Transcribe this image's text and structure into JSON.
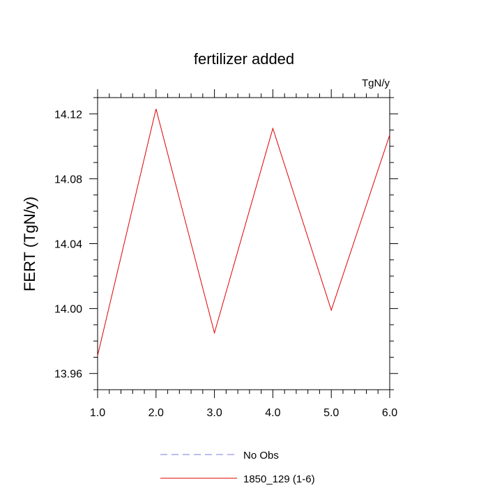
{
  "chart_data": {
    "type": "line",
    "title": "fertilizer added",
    "units_label": "TgN/y",
    "ylabel": "FERT  (TgN/y)",
    "xlabel": "",
    "xlim": [
      1.0,
      6.0
    ],
    "ylim": [
      13.95,
      14.13
    ],
    "x_ticks": [
      1.0,
      2.0,
      3.0,
      4.0,
      5.0,
      6.0
    ],
    "x_tick_labels": [
      "1.0",
      "2.0",
      "3.0",
      "4.0",
      "5.0",
      "6.0"
    ],
    "y_ticks": [
      13.96,
      14.0,
      14.04,
      14.08,
      14.12
    ],
    "y_tick_labels": [
      "13.96",
      "14.00",
      "14.04",
      "14.08",
      "14.12"
    ],
    "grid": false,
    "legend_position": "bottom-center",
    "series": [
      {
        "name": "No Obs",
        "color": "#7b7bd9",
        "dash": "dashed",
        "x": [],
        "y": []
      },
      {
        "name": "1850_129 (1-6)",
        "color": "#e00000",
        "dash": "solid",
        "x": [
          1.0,
          2.0,
          3.0,
          4.0,
          5.0,
          6.0
        ],
        "y": [
          13.971,
          14.123,
          13.985,
          14.111,
          13.999,
          14.107
        ]
      }
    ]
  }
}
